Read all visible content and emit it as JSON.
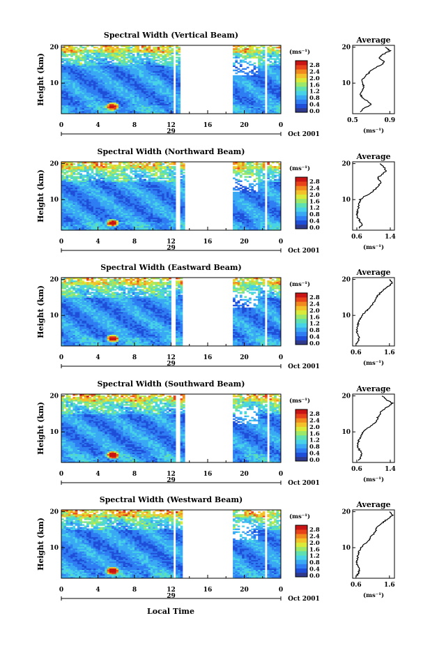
{
  "figure": {
    "xaxis_label": "Local Time",
    "date_label": "Oct 2001",
    "day_label": "29"
  },
  "chart_data": [
    {
      "type": "heatmap",
      "title": "Spectral Width (Vertical Beam)",
      "ylabel": "Height (km)",
      "xlim": [
        0,
        24
      ],
      "ylim": [
        1.5,
        20.5
      ],
      "xticks": [
        "0",
        "4",
        "8",
        "12",
        "16",
        "20",
        "0"
      ],
      "yticks": [
        "10",
        "20"
      ],
      "gaps": [
        [
          12.2,
          12.6
        ],
        [
          13.0,
          18.7
        ],
        [
          22.2,
          22.5
        ]
      ],
      "colorbar": {
        "unit": "(ms⁻¹)",
        "labels": [
          "0.0",
          "0.4",
          "0.8",
          "1.2",
          "1.6",
          "2.0",
          "2.4",
          "2.8"
        ]
      },
      "profile": {
        "title": "Average",
        "xlabel": "(ms⁻¹)",
        "xticks": [
          "0.5",
          "0.9"
        ],
        "xlim": [
          0.5,
          0.95
        ],
        "yticks": [
          "10",
          "20"
        ],
        "heights": [
          2,
          3,
          4,
          5,
          6,
          7,
          8,
          9,
          10,
          11,
          12,
          13,
          14,
          15,
          16,
          17,
          18,
          19,
          20
        ],
        "values": [
          0.58,
          0.62,
          0.7,
          0.66,
          0.6,
          0.58,
          0.6,
          0.62,
          0.61,
          0.6,
          0.64,
          0.68,
          0.72,
          0.8,
          0.85,
          0.78,
          0.83,
          0.9,
          0.85
        ]
      }
    },
    {
      "type": "heatmap",
      "title": "Spectral Width (Northward Beam)",
      "ylabel": "Height (km)",
      "xlim": [
        0,
        24
      ],
      "ylim": [
        1.5,
        20.5
      ],
      "xticks": [
        "0",
        "4",
        "8",
        "12",
        "16",
        "20",
        "0"
      ],
      "yticks": [
        "10",
        "20"
      ],
      "gaps": [
        [
          12.5,
          12.9
        ],
        [
          13.6,
          18.7
        ],
        [
          22.3,
          22.6
        ]
      ],
      "colorbar": {
        "unit": "(ms⁻¹)",
        "labels": [
          "0.0",
          "0.4",
          "0.8",
          "1.2",
          "1.6",
          "2.0",
          "2.4",
          "2.8"
        ]
      },
      "profile": {
        "title": "Average",
        "xlabel": "(ms⁻¹)",
        "xticks": [
          "0.6",
          "1.4"
        ],
        "xlim": [
          0.5,
          1.5
        ],
        "yticks": [
          "10",
          "20"
        ],
        "heights": [
          2,
          3,
          4,
          5,
          6,
          7,
          8,
          9,
          10,
          11,
          12,
          13,
          14,
          15,
          16,
          17,
          18,
          19,
          20
        ],
        "values": [
          0.65,
          0.72,
          0.68,
          0.62,
          0.6,
          0.62,
          0.64,
          0.66,
          0.68,
          0.8,
          0.95,
          1.05,
          1.12,
          1.18,
          1.1,
          1.2,
          1.3,
          1.25,
          1.15
        ]
      }
    },
    {
      "type": "heatmap",
      "title": "Spectral Width (Eastward Beam)",
      "ylabel": "Height (km)",
      "xlim": [
        0,
        24
      ],
      "ylim": [
        1.5,
        20.5
      ],
      "xticks": [
        "0",
        "4",
        "8",
        "12",
        "16",
        "20",
        "0"
      ],
      "yticks": [
        "10",
        "20"
      ],
      "gaps": [
        [
          12.0,
          12.4
        ],
        [
          13.3,
          18.7
        ],
        [
          22.3,
          22.6
        ]
      ],
      "colorbar": {
        "unit": "(ms⁻¹)",
        "labels": [
          "0.0",
          "0.4",
          "0.8",
          "1.2",
          "1.6",
          "2.0",
          "2.4",
          "2.8"
        ]
      },
      "profile": {
        "title": "Average",
        "xlabel": "(ms⁻¹)",
        "xticks": [
          "0.6",
          "1.6"
        ],
        "xlim": [
          0.5,
          1.75
        ],
        "yticks": [
          "10",
          "20"
        ],
        "heights": [
          2,
          3,
          4,
          5,
          6,
          7,
          8,
          9,
          10,
          11,
          12,
          13,
          14,
          15,
          16,
          17,
          18,
          19,
          20
        ],
        "values": [
          0.62,
          0.66,
          0.7,
          0.64,
          0.62,
          0.64,
          0.68,
          0.72,
          0.78,
          0.88,
          1.0,
          1.1,
          1.15,
          1.2,
          1.3,
          1.4,
          1.55,
          1.7,
          1.6
        ]
      }
    },
    {
      "type": "heatmap",
      "title": "Spectral Width (Southward Beam)",
      "ylabel": "Height (km)",
      "xlim": [
        0,
        24
      ],
      "ylim": [
        1.5,
        20.5
      ],
      "xticks": [
        "0",
        "4",
        "8",
        "12",
        "16",
        "20",
        "0"
      ],
      "yticks": [
        "10",
        "20"
      ],
      "gaps": [
        [
          12.5,
          12.9
        ],
        [
          13.6,
          18.7
        ],
        [
          22.4,
          22.7
        ]
      ],
      "colorbar": {
        "unit": "(ms⁻¹)",
        "labels": [
          "0.0",
          "0.4",
          "0.8",
          "1.2",
          "1.6",
          "2.0",
          "2.4",
          "2.8"
        ]
      },
      "profile": {
        "title": "Average",
        "xlabel": "(ms⁻¹)",
        "xticks": [
          "0.6",
          "1.4"
        ],
        "xlim": [
          0.5,
          1.5
        ],
        "yticks": [
          "10",
          "20"
        ],
        "heights": [
          2,
          3,
          4,
          5,
          6,
          7,
          8,
          9,
          10,
          11,
          12,
          13,
          14,
          15,
          16,
          17,
          18,
          19,
          20
        ],
        "values": [
          0.64,
          0.7,
          0.72,
          0.66,
          0.62,
          0.63,
          0.66,
          0.7,
          0.76,
          0.85,
          0.98,
          1.08,
          1.1,
          1.15,
          1.2,
          1.35,
          1.45,
          1.3,
          1.2
        ]
      }
    },
    {
      "type": "heatmap",
      "title": "Spectral Width (Westward Beam)",
      "ylabel": "Height (km)",
      "xlim": [
        0,
        24
      ],
      "ylim": [
        1.5,
        20.5
      ],
      "xticks": [
        "0",
        "4",
        "8",
        "12",
        "16",
        "20",
        "0"
      ],
      "yticks": [
        "10",
        "20"
      ],
      "gaps": [
        [
          12.2,
          12.6
        ],
        [
          13.2,
          18.7
        ],
        [
          22.3,
          22.6
        ]
      ],
      "colorbar": {
        "unit": "(ms⁻¹)",
        "labels": [
          "0.0",
          "0.4",
          "0.8",
          "1.2",
          "1.6",
          "2.0",
          "2.4",
          "2.8"
        ]
      },
      "profile": {
        "title": "Average",
        "xlabel": "(ms⁻¹)",
        "xticks": [
          "0.6",
          "1.6"
        ],
        "xlim": [
          0.5,
          1.75
        ],
        "yticks": [
          "10",
          "20"
        ],
        "heights": [
          2,
          3,
          4,
          5,
          6,
          7,
          8,
          9,
          10,
          11,
          12,
          13,
          14,
          15,
          16,
          17,
          18,
          19,
          20
        ],
        "values": [
          0.62,
          0.68,
          0.7,
          0.65,
          0.62,
          0.64,
          0.66,
          0.7,
          0.75,
          0.85,
          0.98,
          1.05,
          1.15,
          1.2,
          1.25,
          1.4,
          1.55,
          1.7,
          1.6
        ]
      }
    }
  ],
  "colors": {
    "colormap": [
      "#303a8c",
      "#1f4fd8",
      "#2f7df2",
      "#3aa9f4",
      "#47d2e8",
      "#5fe0b0",
      "#9be86a",
      "#d9ea3a",
      "#f3c22a",
      "#f08a1f",
      "#e8421a",
      "#c81414"
    ]
  }
}
